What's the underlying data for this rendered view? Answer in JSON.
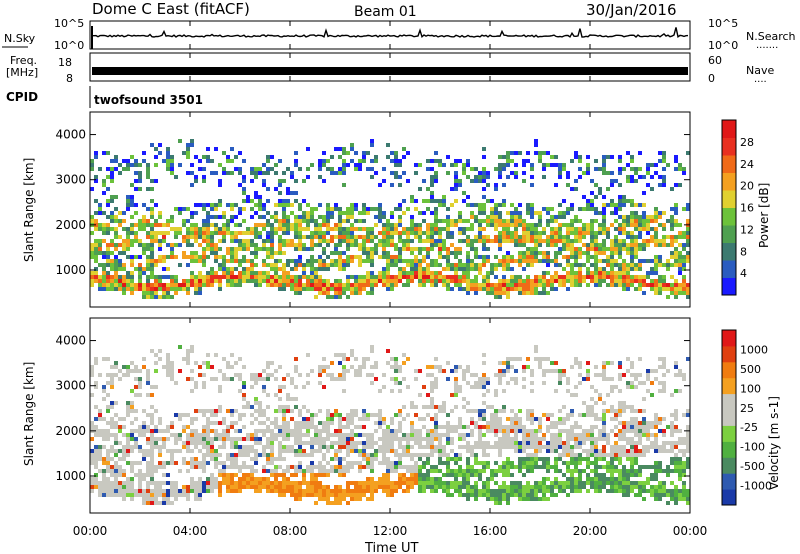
{
  "header": {
    "title": "Dome C East (fitACF)",
    "beam": "Beam 01",
    "date": "30/Jan/2016"
  },
  "sky_panel": {
    "label": "N.Sky",
    "y_top_tick": "10^5",
    "y_bottom_tick": "10^0",
    "right_label": "N.Search",
    "right_dots": ".......",
    "right_top_tick": "10^5",
    "right_bottom_tick": "10^0"
  },
  "freq_panel": {
    "label_line1": "Freq.",
    "label_line2": "[MHz]",
    "y_top_tick": "18",
    "y_bottom_tick": "8",
    "right_label": "Nave",
    "right_dots": "....",
    "right_top_tick": "60",
    "right_bottom_tick": "0"
  },
  "cpid": {
    "label": "CPID",
    "value": "twofsound 3501"
  },
  "chart_data": [
    {
      "type": "heatmap",
      "name": "power",
      "ylabel": "Slant Range [km]",
      "yticks": [
        "1000",
        "2000",
        "3000",
        "4000"
      ],
      "ylim": [
        180,
        4500
      ],
      "xlim": [
        0,
        24
      ],
      "xticks": [
        0,
        4,
        8,
        12,
        16,
        20,
        24
      ],
      "colorbar": {
        "label": "Power [dB]",
        "ticks": [
          "4",
          "8",
          "12",
          "16",
          "20",
          "24",
          "28"
        ],
        "range": [
          0,
          32
        ],
        "colors": [
          "#1a1aff",
          "#2a5cc0",
          "#3c7a70",
          "#4fa050",
          "#6cc23a",
          "#e0d030",
          "#f4a020",
          "#f06a18",
          "#e83020",
          "#e01818"
        ]
      },
      "bands": [
        {
          "center_km": 1900,
          "width_km": 300,
          "level": 0.55
        },
        {
          "center_km": 1550,
          "width_km": 250,
          "level": 0.6
        },
        {
          "center_km": 1150,
          "width_km": 250,
          "level": 0.55
        },
        {
          "center_km": 700,
          "width_km": 250,
          "level": 0.75
        },
        {
          "center_km": 2300,
          "width_km": 250,
          "level": 0.35
        },
        {
          "center_km": 3200,
          "width_km": 500,
          "level": 0.25
        }
      ]
    },
    {
      "type": "heatmap",
      "name": "velocity",
      "ylabel": "Slant Range [km]",
      "yticks": [
        "1000",
        "2000",
        "3000",
        "4000"
      ],
      "ylim": [
        180,
        4500
      ],
      "xlim": [
        0,
        24
      ],
      "xticks": [
        0,
        4,
        8,
        12,
        16,
        20,
        24
      ],
      "colorbar": {
        "label": "Velocity [m s-1]",
        "ticks": [
          "1000",
          "500",
          "100",
          "25",
          "-25",
          "-100",
          "-500",
          "-1000"
        ],
        "colors": [
          "#1a3aa8",
          "#2e5ab0",
          "#4a8a60",
          "#50b040",
          "#7cd040",
          "#c8c8c0",
          "#c8c8c0",
          "#f4a020",
          "#f07c10",
          "#e04010",
          "#e01818"
        ]
      }
    }
  ],
  "x_axis": {
    "label": "Time UT",
    "ticks": [
      "00:00",
      "04:00",
      "08:00",
      "12:00",
      "16:00",
      "20:00",
      "00:00"
    ]
  }
}
